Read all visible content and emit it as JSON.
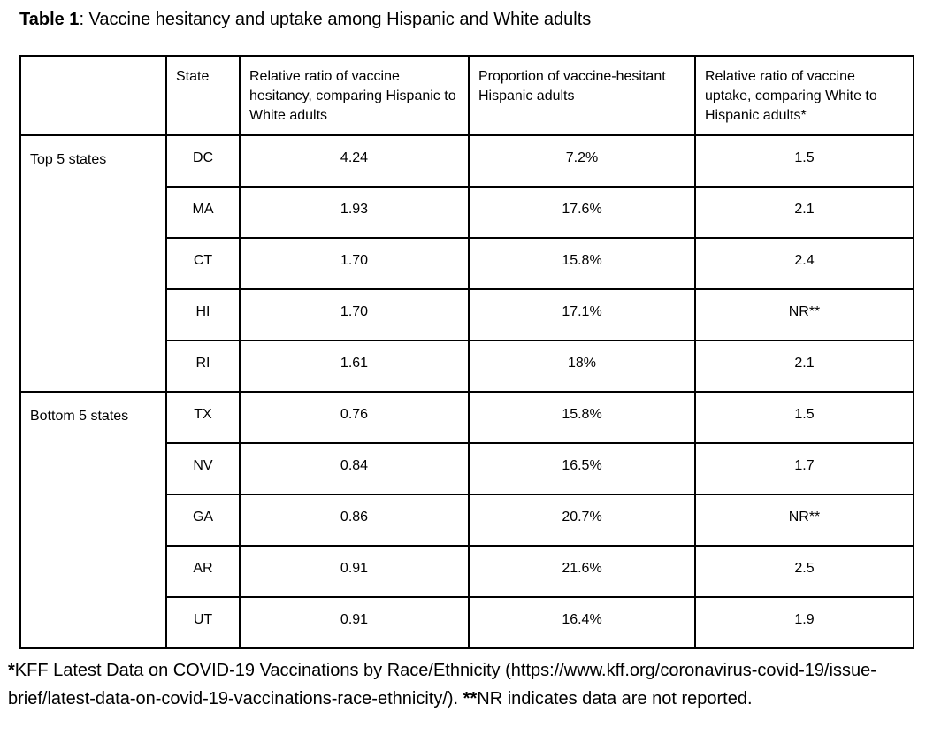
{
  "title": {
    "label": "Table 1",
    "rest": ": Vaccine hesitancy and uptake among Hispanic and White adults"
  },
  "table": {
    "headers": {
      "group": "",
      "state": "State",
      "hesitancy_ratio": "Relative ratio of vaccine hesitancy, comparing Hispanic to White adults",
      "hesitant_proportion": "Proportion of vaccine-hesitant Hispanic adults",
      "uptake_ratio": "Relative ratio of vaccine uptake, comparing White to Hispanic adults*"
    },
    "groups": [
      {
        "label": "Top 5 states",
        "rows": [
          {
            "state": "DC",
            "ratio": "4.24",
            "proportion": "7.2%",
            "uptake": "1.5"
          },
          {
            "state": "MA",
            "ratio": "1.93",
            "proportion": "17.6%",
            "uptake": "2.1"
          },
          {
            "state": "CT",
            "ratio": "1.70",
            "proportion": "15.8%",
            "uptake": "2.4"
          },
          {
            "state": "HI",
            "ratio": "1.70",
            "proportion": "17.1%",
            "uptake": "NR**"
          },
          {
            "state": "RI",
            "ratio": "1.61",
            "proportion": "18%",
            "uptake": "2.1"
          }
        ]
      },
      {
        "label": "Bottom 5 states",
        "rows": [
          {
            "state": "TX",
            "ratio": "0.76",
            "proportion": "15.8%",
            "uptake": "1.5"
          },
          {
            "state": "NV",
            "ratio": "0.84",
            "proportion": "16.5%",
            "uptake": "1.7"
          },
          {
            "state": "GA",
            "ratio": "0.86",
            "proportion": "20.7%",
            "uptake": "NR**"
          },
          {
            "state": "AR",
            "ratio": "0.91",
            "proportion": "21.6%",
            "uptake": "2.5"
          },
          {
            "state": "UT",
            "ratio": "0.91",
            "proportion": "16.4%",
            "uptake": "1.9"
          }
        ]
      }
    ]
  },
  "footnote": {
    "star1": "*",
    "text1": "KFF Latest Data on COVID-19 Vaccinations by Race/Ethnicity (https://www.kff.org/coronavirus-covid-19/issue-brief/latest-data-on-covid-19-vaccinations-race-ethnicity/). ",
    "star2": "**",
    "text2": "NR indicates data are not reported."
  }
}
